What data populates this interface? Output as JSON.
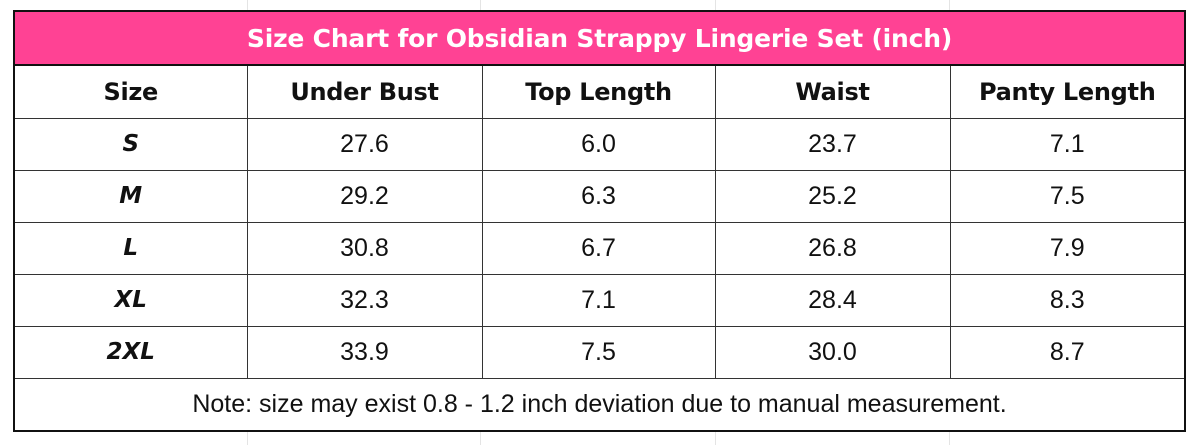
{
  "title": "Size Chart for Obsidian Strappy Lingerie Set (inch)",
  "colors": {
    "title_background": "#ff4294",
    "title_text": "#ffffff",
    "border": "#111111"
  },
  "columns": [
    "Size",
    "Under Bust",
    "Top Length",
    "Waist",
    "Panty Length"
  ],
  "rows": [
    {
      "size": "S",
      "under_bust": "27.6",
      "top_length": "6.0",
      "waist": "23.7",
      "panty_length": "7.1"
    },
    {
      "size": "M",
      "under_bust": "29.2",
      "top_length": "6.3",
      "waist": "25.2",
      "panty_length": "7.5"
    },
    {
      "size": "L",
      "under_bust": "30.8",
      "top_length": "6.7",
      "waist": "26.8",
      "panty_length": "7.9"
    },
    {
      "size": "XL",
      "under_bust": "32.3",
      "top_length": "7.1",
      "waist": "28.4",
      "panty_length": "8.3"
    },
    {
      "size": "2XL",
      "under_bust": "33.9",
      "top_length": "7.5",
      "waist": "30.0",
      "panty_length": "8.7"
    }
  ],
  "note": "Note: size may exist 0.8 - 1.2 inch deviation due to manual measurement."
}
